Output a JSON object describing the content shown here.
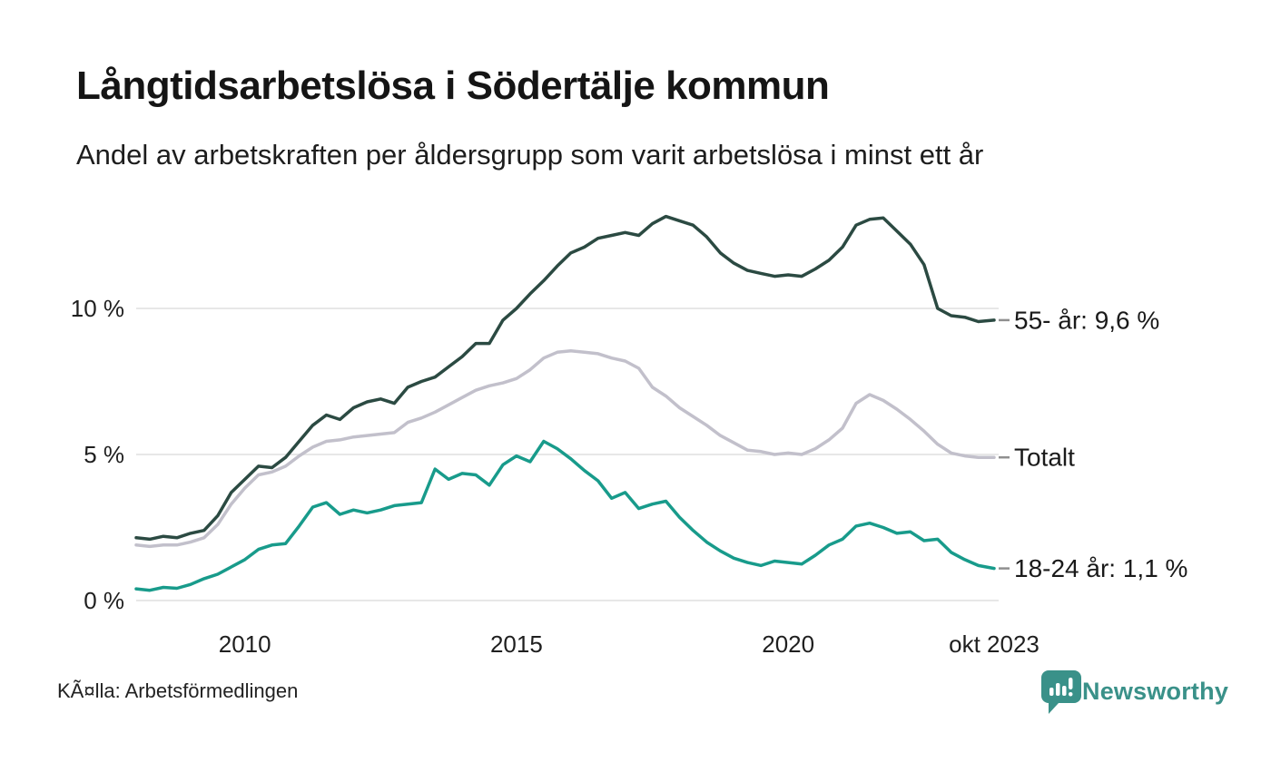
{
  "header": {
    "title": "Långtidsarbetslösa i Södertälje kommun",
    "subtitle": "Andel av arbetskraften per åldersgrupp som varit arbetslösa i minst ett år"
  },
  "footer": {
    "source": "KÃ¤lla: Arbetsförmedlingen",
    "brand": "Newsworthy"
  },
  "colors": {
    "series_55": "#2b4a42",
    "series_total": "#c2c0cb",
    "series_18_24": "#189b8b",
    "gridline": "#e7e7e7",
    "axis_text": "#1f1f1f",
    "end_label_text": "#1a1a1a",
    "end_label_tick": "#8f8f8f",
    "brand_teal": "#3a9189"
  },
  "chart_data": {
    "type": "line",
    "title": "Långtidsarbetslösa i Södertälje kommun",
    "subtitle": "Andel av arbetskraften per åldersgrupp som varit arbetslösa i minst ett år",
    "xlabel": "",
    "ylabel": "",
    "unit": "%",
    "grid": "horizontal",
    "legend_position": "right-end-labels",
    "xlim": [
      2008.0,
      2023.79
    ],
    "ylim": [
      0,
      14
    ],
    "xticks": [
      {
        "value": 2010,
        "label": "2010"
      },
      {
        "value": 2015,
        "label": "2015"
      },
      {
        "value": 2020,
        "label": "2020"
      },
      {
        "value": 2023.79,
        "label": "okt 2023"
      }
    ],
    "yticks": [
      {
        "value": 0,
        "label": "0 %"
      },
      {
        "value": 5,
        "label": "5 %"
      },
      {
        "value": 10,
        "label": "10 %"
      }
    ],
    "x": [
      2008.0,
      2008.25,
      2008.5,
      2008.75,
      2009.0,
      2009.25,
      2009.5,
      2009.75,
      2010.0,
      2010.25,
      2010.5,
      2010.75,
      2011.0,
      2011.25,
      2011.5,
      2011.75,
      2012.0,
      2012.25,
      2012.5,
      2012.75,
      2013.0,
      2013.25,
      2013.5,
      2013.75,
      2014.0,
      2014.25,
      2014.5,
      2014.75,
      2015.0,
      2015.25,
      2015.5,
      2015.75,
      2016.0,
      2016.25,
      2016.5,
      2016.75,
      2017.0,
      2017.25,
      2017.5,
      2017.75,
      2018.0,
      2018.25,
      2018.5,
      2018.75,
      2019.0,
      2019.25,
      2019.5,
      2019.75,
      2020.0,
      2020.25,
      2020.5,
      2020.75,
      2021.0,
      2021.25,
      2021.5,
      2021.75,
      2022.0,
      2022.25,
      2022.5,
      2022.75,
      2023.0,
      2023.25,
      2023.5,
      2023.79
    ],
    "series": [
      {
        "name": "55- år",
        "end_label": "55- år: 9,6 %",
        "last_value_text": "9,6 %",
        "color": "#2b4a42",
        "values": [
          2.15,
          2.1,
          2.2,
          2.15,
          2.3,
          2.4,
          2.9,
          3.7,
          4.15,
          4.6,
          4.55,
          4.9,
          5.45,
          6.0,
          6.35,
          6.2,
          6.6,
          6.8,
          6.9,
          6.75,
          7.3,
          7.5,
          7.65,
          8.0,
          8.35,
          8.8,
          8.8,
          9.6,
          10.0,
          10.5,
          10.95,
          11.45,
          11.9,
          12.1,
          12.4,
          12.5,
          12.6,
          12.5,
          12.9,
          13.15,
          13.0,
          12.85,
          12.45,
          11.9,
          11.55,
          11.3,
          11.2,
          11.1,
          11.15,
          11.1,
          11.35,
          11.65,
          12.1,
          12.85,
          13.05,
          13.1,
          12.65,
          12.2,
          11.5,
          10.0,
          9.75,
          9.7,
          9.55,
          9.6
        ]
      },
      {
        "name": "Totalt",
        "end_label": "Totalt",
        "last_value_text": "",
        "color": "#c2c0cb",
        "values": [
          1.9,
          1.85,
          1.9,
          1.9,
          2.0,
          2.15,
          2.6,
          3.3,
          3.85,
          4.3,
          4.4,
          4.6,
          4.95,
          5.25,
          5.45,
          5.5,
          5.6,
          5.65,
          5.7,
          5.75,
          6.1,
          6.25,
          6.45,
          6.7,
          6.95,
          7.2,
          7.35,
          7.45,
          7.6,
          7.9,
          8.3,
          8.5,
          8.55,
          8.5,
          8.45,
          8.3,
          8.2,
          7.95,
          7.3,
          7.0,
          6.6,
          6.3,
          6.0,
          5.65,
          5.4,
          5.15,
          5.1,
          5.0,
          5.05,
          5.0,
          5.2,
          5.5,
          5.9,
          6.75,
          7.05,
          6.85,
          6.55,
          6.2,
          5.8,
          5.35,
          5.05,
          4.95,
          4.9,
          4.9
        ]
      },
      {
        "name": "18-24 år",
        "end_label": "18-24 år: 1,1 %",
        "last_value_text": "1,1 %",
        "color": "#189b8b",
        "values": [
          0.4,
          0.35,
          0.45,
          0.42,
          0.55,
          0.75,
          0.9,
          1.15,
          1.4,
          1.75,
          1.9,
          1.95,
          2.55,
          3.2,
          3.35,
          2.95,
          3.1,
          3.0,
          3.1,
          3.25,
          3.3,
          3.35,
          4.5,
          4.15,
          4.35,
          4.3,
          3.95,
          4.65,
          4.95,
          4.75,
          5.45,
          5.2,
          4.85,
          4.45,
          4.1,
          3.5,
          3.7,
          3.15,
          3.3,
          3.4,
          2.85,
          2.4,
          2.0,
          1.7,
          1.45,
          1.3,
          1.2,
          1.35,
          1.3,
          1.25,
          1.55,
          1.9,
          2.1,
          2.55,
          2.65,
          2.5,
          2.3,
          2.35,
          2.05,
          2.1,
          1.65,
          1.4,
          1.2,
          1.1
        ]
      }
    ]
  }
}
